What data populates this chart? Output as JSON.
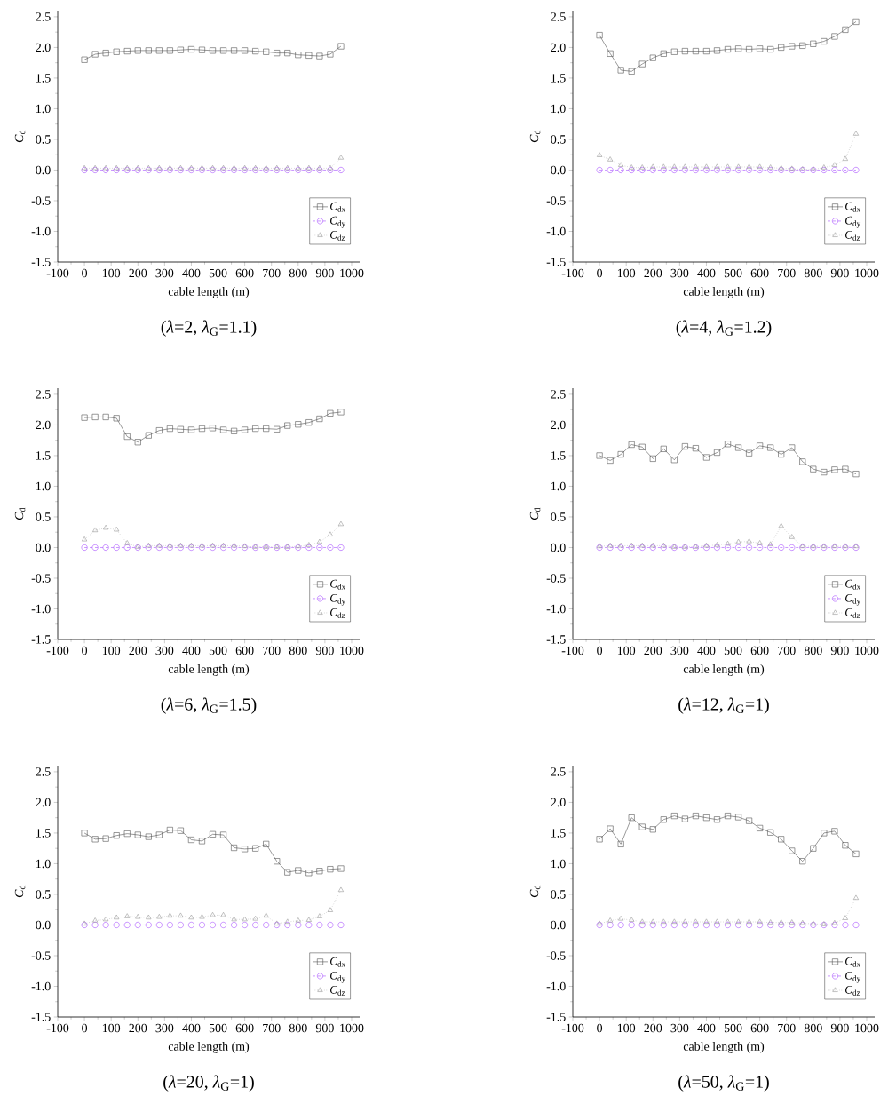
{
  "chart_data": [
    {
      "type": "line",
      "title": "(*λ*=2,  *λ*$_{G}$=1.1)",
      "xlabel": "cable length (m)",
      "ylabel": "*C*$_{d}$",
      "legend": "bottom right",
      "x": [
        0,
        40,
        80,
        120,
        160,
        200,
        240,
        280,
        320,
        360,
        400,
        440,
        480,
        520,
        560,
        600,
        640,
        680,
        720,
        760,
        800,
        840,
        880,
        920,
        960
      ],
      "xlim": [
        -100,
        1030
      ],
      "ylim": [
        -1.5,
        2.6
      ],
      "xticks": [
        -100,
        0,
        100,
        200,
        300,
        400,
        500,
        600,
        700,
        800,
        900,
        1000
      ],
      "yticks": [
        -1.5,
        {
          "value": -1,
          "label": "-1.0"
        },
        -0.5,
        {
          "value": 0,
          "label": "0.0"
        },
        0.5,
        {
          "value": 1,
          "label": "1.0"
        },
        1.5,
        {
          "value": 2,
          "label": "2.0"
        },
        2.5
      ],
      "series": [
        {
          "name": "*C*$_{dx}$",
          "color": "#555555",
          "marker": "square",
          "line_style": "solid",
          "values": [
            1.8,
            1.89,
            1.91,
            1.93,
            1.94,
            1.95,
            1.95,
            1.95,
            1.95,
            1.96,
            1.97,
            1.96,
            1.95,
            1.95,
            1.95,
            1.95,
            1.94,
            1.93,
            1.91,
            1.91,
            1.88,
            1.87,
            1.86,
            1.89,
            2.02
          ]
        },
        {
          "name": "*C*$_{dy}$",
          "color": "#a64dff",
          "marker": "circle",
          "line_style": "dashed",
          "values": [
            0,
            0,
            0,
            0,
            0,
            0,
            0,
            0,
            0,
            0,
            0,
            0,
            0,
            0,
            0,
            0,
            0,
            0,
            0,
            0,
            0,
            0,
            0,
            0,
            0
          ]
        },
        {
          "name": "*C*$_{dz}$",
          "color": "#999999",
          "marker": "triangle",
          "line_style": "dotted",
          "values": [
            0.03,
            0.03,
            0.03,
            0.03,
            0.03,
            0.03,
            0.03,
            0.03,
            0.03,
            0.03,
            0.03,
            0.03,
            0.03,
            0.03,
            0.03,
            0.03,
            0.03,
            0.03,
            0.03,
            0.03,
            0.03,
            0.03,
            0.03,
            0.03,
            0.2
          ]
        }
      ]
    },
    {
      "type": "line",
      "title": "(*λ*=4,  *λ*$_{G}$=1.2)",
      "xlabel": "cable length (m)",
      "ylabel": "*C*$_{d}$",
      "legend": "bottom right",
      "x": [
        0,
        40,
        80,
        120,
        160,
        200,
        240,
        280,
        320,
        360,
        400,
        440,
        480,
        520,
        560,
        600,
        640,
        680,
        720,
        760,
        800,
        840,
        880,
        920,
        960
      ],
      "xlim": [
        -100,
        1030
      ],
      "ylim": [
        -1.5,
        2.6
      ],
      "xticks": [
        -100,
        0,
        100,
        200,
        300,
        400,
        500,
        600,
        700,
        800,
        900,
        1000
      ],
      "yticks": [
        -1.5,
        {
          "value": -1,
          "label": "-1.0"
        },
        -0.5,
        {
          "value": 0,
          "label": "0.0"
        },
        0.5,
        {
          "value": 1,
          "label": "1.0"
        },
        1.5,
        {
          "value": 2,
          "label": "2.0"
        },
        2.5
      ],
      "series": [
        {
          "name": "*C*$_{dx}$",
          "color": "#555555",
          "marker": "square",
          "line_style": "solid",
          "values": [
            2.2,
            1.9,
            1.63,
            1.61,
            1.73,
            1.83,
            1.9,
            1.93,
            1.94,
            1.94,
            1.94,
            1.95,
            1.97,
            1.98,
            1.97,
            1.98,
            1.97,
            2.0,
            2.02,
            2.03,
            2.06,
            2.1,
            2.18,
            2.29,
            2.42
          ]
        },
        {
          "name": "*C*$_{dy}$",
          "color": "#a64dff",
          "marker": "circle",
          "line_style": "dashed",
          "values": [
            0,
            0,
            0,
            0,
            0,
            0,
            0,
            0,
            0,
            0,
            0,
            0,
            0,
            0,
            0,
            0,
            0,
            0,
            0,
            0,
            0,
            0,
            0,
            0,
            0
          ]
        },
        {
          "name": "*C*$_{dz}$",
          "color": "#999999",
          "marker": "triangle",
          "line_style": "dotted",
          "values": [
            0.24,
            0.17,
            0.08,
            0.04,
            0.04,
            0.05,
            0.05,
            0.05,
            0.05,
            0.05,
            0.05,
            0.05,
            0.05,
            0.05,
            0.05,
            0.05,
            0.04,
            0.03,
            0.02,
            0.01,
            0.01,
            0.04,
            0.08,
            0.18,
            0.59
          ]
        }
      ]
    },
    {
      "type": "line",
      "title": "(*λ*=6,  *λ*$_{G}$=1.5)",
      "xlabel": "cable length (m)",
      "ylabel": "*C*$_{d}$",
      "legend": "bottom right",
      "x": [
        0,
        40,
        80,
        120,
        160,
        200,
        240,
        280,
        320,
        360,
        400,
        440,
        480,
        520,
        560,
        600,
        640,
        680,
        720,
        760,
        800,
        840,
        880,
        920,
        960
      ],
      "xlim": [
        -100,
        1030
      ],
      "ylim": [
        -1.5,
        2.6
      ],
      "xticks": [
        -100,
        0,
        100,
        200,
        300,
        400,
        500,
        600,
        700,
        800,
        900,
        1000
      ],
      "yticks": [
        -1.5,
        {
          "value": -1,
          "label": "-1.0"
        },
        -0.5,
        {
          "value": 0,
          "label": "0.0"
        },
        0.5,
        {
          "value": 1,
          "label": "1.0"
        },
        1.5,
        {
          "value": 2,
          "label": "2.0"
        },
        2.5
      ],
      "series": [
        {
          "name": "*C*$_{dx}$",
          "color": "#555555",
          "marker": "square",
          "line_style": "solid",
          "values": [
            2.12,
            2.13,
            2.13,
            2.11,
            1.81,
            1.72,
            1.83,
            1.91,
            1.94,
            1.93,
            1.92,
            1.94,
            1.95,
            1.92,
            1.9,
            1.92,
            1.94,
            1.94,
            1.93,
            1.99,
            2.01,
            2.04,
            2.1,
            2.19,
            2.21
          ]
        },
        {
          "name": "*C*$_{dy}$",
          "color": "#a64dff",
          "marker": "circle",
          "line_style": "dashed",
          "values": [
            0,
            0,
            0,
            0,
            0,
            0,
            0,
            0,
            0,
            0,
            0,
            0,
            0,
            0,
            0,
            0,
            0,
            0,
            0,
            0,
            0,
            0,
            0,
            0,
            0
          ]
        },
        {
          "name": "*C*$_{dz}$",
          "color": "#999999",
          "marker": "triangle",
          "line_style": "dotted",
          "values": [
            0.13,
            0.28,
            0.32,
            0.29,
            0.07,
            0.01,
            0.03,
            0.03,
            0.03,
            0.03,
            0.03,
            0.03,
            0.03,
            0.03,
            0.03,
            0.02,
            0.01,
            0.01,
            0.01,
            0.01,
            0.02,
            0.04,
            0.09,
            0.21,
            0.38
          ]
        }
      ]
    },
    {
      "type": "line",
      "title": "(*λ*=12,  *λ*$_{G}$=1)",
      "xlabel": "cable length (m)",
      "ylabel": "*C*$_{d}$",
      "legend": "bottom right",
      "x": [
        0,
        40,
        80,
        120,
        160,
        200,
        240,
        280,
        320,
        360,
        400,
        440,
        480,
        520,
        560,
        600,
        640,
        680,
        720,
        760,
        800,
        840,
        880,
        920,
        960
      ],
      "xlim": [
        -100,
        1030
      ],
      "ylim": [
        -1.5,
        2.6
      ],
      "xticks": [
        -100,
        0,
        100,
        200,
        300,
        400,
        500,
        600,
        700,
        800,
        900,
        1000
      ],
      "yticks": [
        -1.5,
        {
          "value": -1,
          "label": "-1.0"
        },
        -0.5,
        {
          "value": 0,
          "label": "0.0"
        },
        0.5,
        {
          "value": 1,
          "label": "1.0"
        },
        1.5,
        {
          "value": 2,
          "label": "2.0"
        },
        2.5
      ],
      "series": [
        {
          "name": "*C*$_{dx}$",
          "color": "#555555",
          "marker": "square",
          "line_style": "solid",
          "values": [
            1.5,
            1.42,
            1.52,
            1.68,
            1.64,
            1.45,
            1.61,
            1.43,
            1.65,
            1.62,
            1.47,
            1.55,
            1.69,
            1.63,
            1.54,
            1.66,
            1.63,
            1.52,
            1.63,
            1.4,
            1.28,
            1.23,
            1.27,
            1.28,
            1.2
          ]
        },
        {
          "name": "*C*$_{dy}$",
          "color": "#a64dff",
          "marker": "circle",
          "line_style": "dashed",
          "values": [
            0,
            0,
            0,
            0,
            0,
            0,
            0,
            0,
            0,
            0,
            0,
            0,
            0,
            0,
            0,
            0,
            0,
            0,
            0,
            0,
            0,
            0,
            0,
            0,
            0
          ]
        },
        {
          "name": "*C*$_{dz}$",
          "color": "#999999",
          "marker": "triangle",
          "line_style": "dotted",
          "values": [
            0.02,
            0.03,
            0.03,
            0.03,
            0.03,
            0.03,
            0.03,
            0.01,
            0.01,
            0.01,
            0.03,
            0.04,
            0.06,
            0.09,
            0.1,
            0.07,
            0.05,
            0.35,
            0.17,
            0.02,
            0.02,
            0.02,
            0.02,
            0.02,
            0.02
          ]
        }
      ]
    },
    {
      "type": "line",
      "title": "(*λ*=20,  *λ*$_{G}$=1)",
      "xlabel": "cable length (m)",
      "ylabel": "*C*$_{d}$",
      "legend": "bottom right",
      "x": [
        0,
        40,
        80,
        120,
        160,
        200,
        240,
        280,
        320,
        360,
        400,
        440,
        480,
        520,
        560,
        600,
        640,
        680,
        720,
        760,
        800,
        840,
        880,
        920,
        960
      ],
      "xlim": [
        -100,
        1030
      ],
      "ylim": [
        -1.5,
        2.6
      ],
      "xticks": [
        -100,
        0,
        100,
        200,
        300,
        400,
        500,
        600,
        700,
        800,
        900,
        1000
      ],
      "yticks": [
        -1.5,
        {
          "value": -1,
          "label": "-1.0"
        },
        -0.5,
        {
          "value": 0,
          "label": "0.0"
        },
        0.5,
        {
          "value": 1,
          "label": "1.0"
        },
        1.5,
        {
          "value": 2,
          "label": "2.0"
        },
        2.5
      ],
      "series": [
        {
          "name": "*C*$_{dx}$",
          "color": "#555555",
          "marker": "square",
          "line_style": "solid",
          "values": [
            1.5,
            1.4,
            1.41,
            1.46,
            1.49,
            1.47,
            1.44,
            1.47,
            1.55,
            1.54,
            1.39,
            1.37,
            1.48,
            1.47,
            1.26,
            1.24,
            1.25,
            1.32,
            1.04,
            0.86,
            0.89,
            0.85,
            0.88,
            0.91,
            0.92
          ]
        },
        {
          "name": "*C*$_{dy}$",
          "color": "#a64dff",
          "marker": "circle",
          "line_style": "dashed",
          "values": [
            0,
            0,
            0,
            0,
            0,
            0,
            0,
            0,
            0,
            0,
            0,
            0,
            0,
            0,
            0,
            0,
            0,
            0,
            0,
            0,
            0,
            0,
            0,
            0,
            0
          ]
        },
        {
          "name": "*C*$_{dz}$",
          "color": "#999999",
          "marker": "triangle",
          "line_style": "dotted",
          "values": [
            0.02,
            0.07,
            0.09,
            0.12,
            0.14,
            0.13,
            0.12,
            0.13,
            0.15,
            0.15,
            0.12,
            0.13,
            0.16,
            0.16,
            0.09,
            0.09,
            0.1,
            0.15,
            0.02,
            0.05,
            0.07,
            0.08,
            0.14,
            0.24,
            0.57
          ]
        }
      ]
    },
    {
      "type": "line",
      "title": "(*λ*=50,  *λ*$_{G}$=1)",
      "xlabel": "cable length (m)",
      "ylabel": "*C*$_{d}$",
      "legend": "bottom right",
      "x": [
        0,
        40,
        80,
        120,
        160,
        200,
        240,
        280,
        320,
        360,
        400,
        440,
        480,
        520,
        560,
        600,
        640,
        680,
        720,
        760,
        800,
        840,
        880,
        920,
        960
      ],
      "xlim": [
        -100,
        1030
      ],
      "ylim": [
        -1.5,
        2.6
      ],
      "xticks": [
        -100,
        0,
        100,
        200,
        300,
        400,
        500,
        600,
        700,
        800,
        900,
        1000
      ],
      "yticks": [
        -1.5,
        {
          "value": -1,
          "label": "-1.0"
        },
        -0.5,
        {
          "value": 0,
          "label": "0.0"
        },
        0.5,
        {
          "value": 1,
          "label": "1.0"
        },
        1.5,
        {
          "value": 2,
          "label": "2.0"
        },
        2.5
      ],
      "series": [
        {
          "name": "*C*$_{dx}$",
          "color": "#555555",
          "marker": "square",
          "line_style": "solid",
          "values": [
            1.4,
            1.57,
            1.32,
            1.75,
            1.6,
            1.56,
            1.72,
            1.78,
            1.73,
            1.78,
            1.75,
            1.72,
            1.78,
            1.76,
            1.7,
            1.58,
            1.51,
            1.4,
            1.21,
            1.04,
            1.25,
            1.5,
            1.53,
            1.3,
            1.16
          ]
        },
        {
          "name": "*C*$_{dy}$",
          "color": "#a64dff",
          "marker": "circle",
          "line_style": "dashed",
          "values": [
            0,
            0,
            0,
            0,
            0,
            0,
            0,
            0,
            0,
            0,
            0,
            0,
            0,
            0,
            0,
            0,
            0,
            0,
            0,
            0,
            0,
            0,
            0,
            0,
            0
          ]
        },
        {
          "name": "*C*$_{dz}$",
          "color": "#999999",
          "marker": "triangle",
          "line_style": "dotted",
          "values": [
            0.02,
            0.07,
            0.1,
            0.08,
            0.05,
            0.05,
            0.05,
            0.05,
            0.05,
            0.05,
            0.05,
            0.05,
            0.05,
            0.05,
            0.05,
            0.05,
            0.04,
            0.04,
            0.04,
            0.03,
            0.02,
            0.01,
            0.03,
            0.11,
            0.44
          ]
        }
      ]
    }
  ]
}
